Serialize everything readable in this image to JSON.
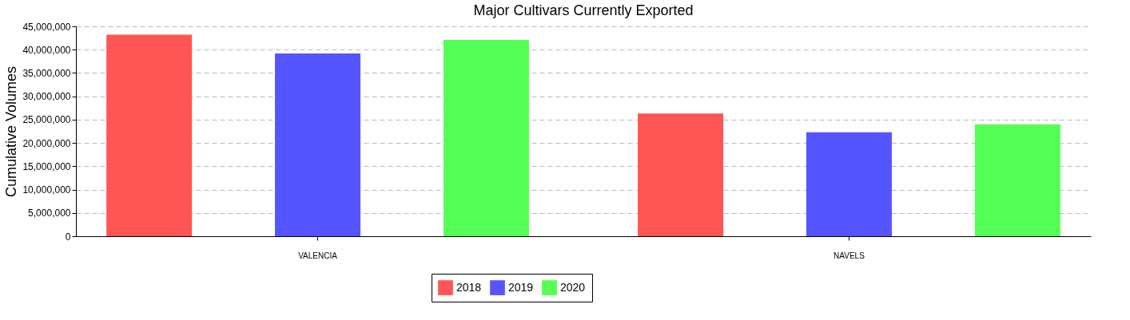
{
  "chart_data": {
    "type": "bar",
    "title": "Major Cultivars Currently Exported",
    "ylabel": "Cumulative Volumes",
    "categories": [
      "VALENCIA",
      "NAVELS"
    ],
    "series": [
      {
        "name": "2018",
        "color": "#ff5555",
        "values": [
          43200000,
          26300000
        ]
      },
      {
        "name": "2019",
        "color": "#5555ff",
        "values": [
          39200000,
          22300000
        ]
      },
      {
        "name": "2020",
        "color": "#55ff55",
        "values": [
          42100000,
          24000000
        ]
      }
    ],
    "ylim": [
      0,
      45000000
    ],
    "yticks": [
      0,
      {
        "value": 5000000,
        "label": "5,000,000"
      },
      {
        "value": 10000000,
        "label": "10,000,000"
      },
      {
        "value": 15000000,
        "label": "15,000,000"
      },
      {
        "value": 20000000,
        "label": "20,000,000"
      },
      {
        "value": 25000000,
        "label": "25,000,000"
      },
      {
        "value": 30000000,
        "label": "30,000,000"
      },
      {
        "value": 35000000,
        "label": "35,000,000"
      },
      {
        "value": 40000000,
        "label": "40,000,000"
      },
      {
        "value": 45000000,
        "label": "45,000,000"
      }
    ],
    "grid": "y",
    "legend": "bottom"
  }
}
